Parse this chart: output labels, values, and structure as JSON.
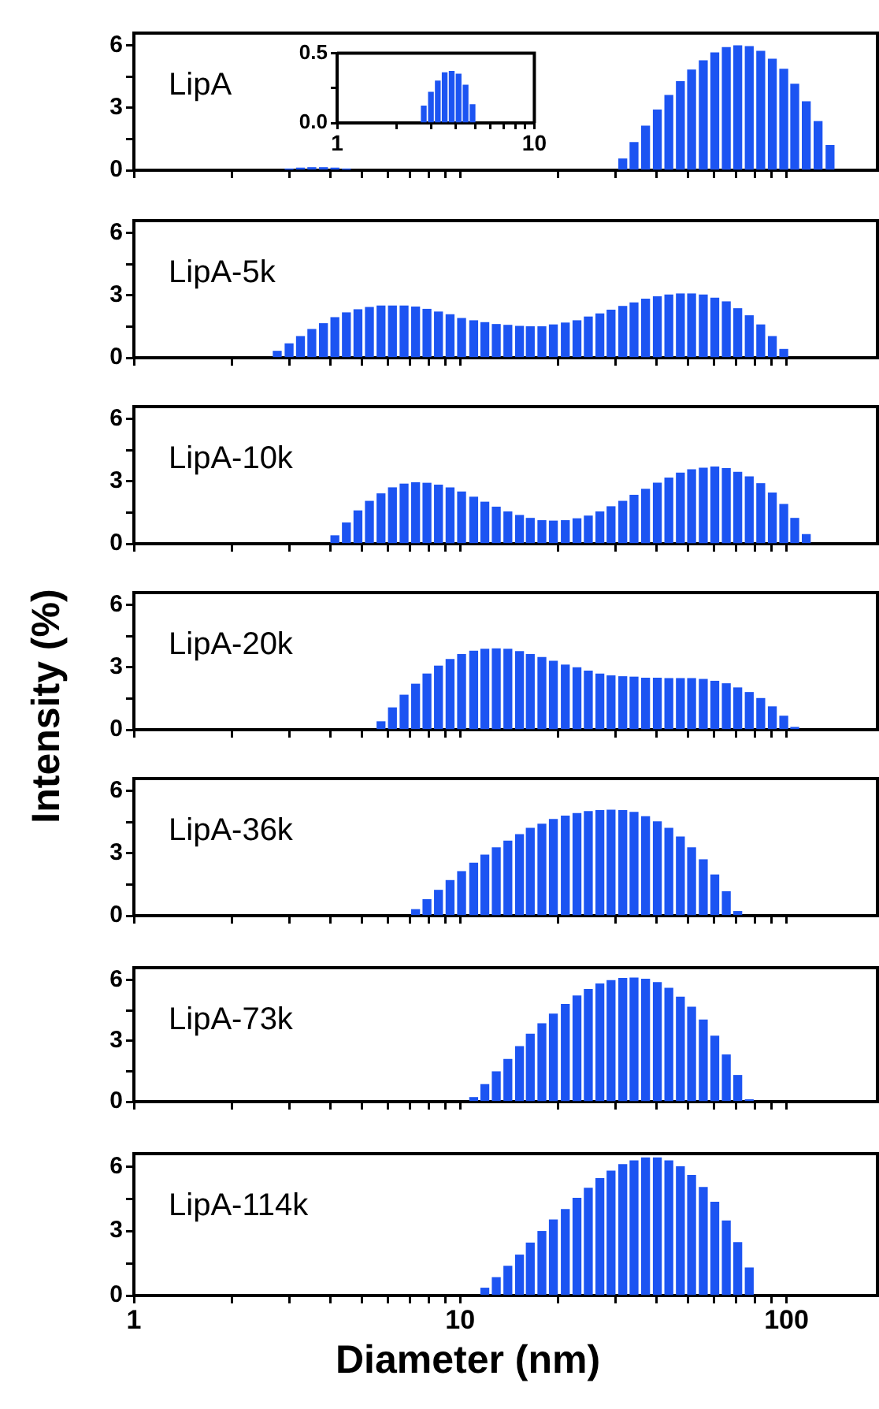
{
  "chart_data": [
    {
      "type": "bar",
      "title": "LipA",
      "log": "x",
      "tick_labels": "y",
      "color": "#1c54f2",
      "xlim": [
        1,
        190
      ],
      "xticks": [
        1,
        {
          "value": 2,
          "label": null
        },
        {
          "value": 3,
          "label": null
        },
        {
          "value": 4,
          "label": null
        },
        {
          "value": 5,
          "label": null
        },
        {
          "value": 6,
          "label": null
        },
        {
          "value": 7,
          "label": null
        },
        {
          "value": 8,
          "label": null
        },
        {
          "value": 9,
          "label": null
        },
        10,
        {
          "value": 20,
          "label": null
        },
        {
          "value": 30,
          "label": null
        },
        {
          "value": 40,
          "label": null
        },
        {
          "value": 50,
          "label": null
        },
        {
          "value": 60,
          "label": null
        },
        {
          "value": 70,
          "label": null
        },
        {
          "value": 80,
          "label": null
        },
        {
          "value": 90,
          "label": null
        },
        100
      ],
      "ylim": [
        0,
        6.6
      ],
      "yticks": [
        0,
        {
          "value": 1.5,
          "label": null
        },
        3,
        {
          "value": 4.5,
          "label": null
        },
        6
      ],
      "x": [
        2.99,
        3.24,
        3.51,
        3.81,
        4.13,
        4.48,
        31.5,
        34.1,
        37,
        40.2,
        43.6,
        47.3,
        51.2,
        55.6,
        60.3,
        65.4,
        70.9,
        76.9,
        83.4,
        90.5,
        98.1,
        106,
        115,
        125,
        136
      ],
      "values": [
        0.05,
        0.1,
        0.12,
        0.12,
        0.1,
        0.05,
        0.54,
        1.33,
        2.12,
        2.9,
        3.6,
        4.26,
        4.82,
        5.27,
        5.65,
        5.9,
        5.99,
        5.95,
        5.72,
        5.34,
        4.86,
        4.14,
        3.29,
        2.34,
        1.19
      ]
    },
    {
      "type": "bar",
      "log": "x",
      "color": "#1c54f2",
      "xlim": [
        1,
        10
      ],
      "xticks": [
        1,
        {
          "value": 2,
          "label": null
        },
        {
          "value": 3,
          "label": null
        },
        {
          "value": 4,
          "label": null
        },
        {
          "value": 5,
          "label": null
        },
        {
          "value": 6,
          "label": null
        },
        {
          "value": 7,
          "label": null
        },
        {
          "value": 8,
          "label": null
        },
        {
          "value": 9,
          "label": null
        },
        10
      ],
      "ylim": [
        0,
        0.5
      ],
      "yticks": [
        {
          "value": 0,
          "label": "0.0"
        },
        {
          "value": 0.25,
          "label": null
        },
        0.5
      ],
      "x": [
        2.75,
        2.99,
        3.24,
        3.51,
        3.81,
        4.13,
        4.48,
        4.86
      ],
      "values": [
        0.12,
        0.22,
        0.3,
        0.36,
        0.37,
        0.35,
        0.27,
        0.13
      ]
    },
    {
      "type": "bar",
      "title": "LipA-5k",
      "log": "x",
      "tick_labels": "y",
      "color": "#1c54f2",
      "xlim": [
        1,
        190
      ],
      "xticks": [
        1,
        {
          "value": 2,
          "label": null
        },
        {
          "value": 3,
          "label": null
        },
        {
          "value": 4,
          "label": null
        },
        {
          "value": 5,
          "label": null
        },
        {
          "value": 6,
          "label": null
        },
        {
          "value": 7,
          "label": null
        },
        {
          "value": 8,
          "label": null
        },
        {
          "value": 9,
          "label": null
        },
        10,
        {
          "value": 20,
          "label": null
        },
        {
          "value": 30,
          "label": null
        },
        {
          "value": 40,
          "label": null
        },
        {
          "value": 50,
          "label": null
        },
        {
          "value": 60,
          "label": null
        },
        {
          "value": 70,
          "label": null
        },
        {
          "value": 80,
          "label": null
        },
        {
          "value": 90,
          "label": null
        },
        100
      ],
      "ylim": [
        0,
        6.6
      ],
      "yticks": [
        0,
        {
          "value": 1.5,
          "label": null
        },
        3,
        {
          "value": 4.5,
          "label": null
        },
        6
      ],
      "x": [
        2.75,
        2.99,
        3.24,
        3.51,
        3.81,
        4.13,
        4.48,
        4.86,
        5.27,
        5.72,
        6.2,
        6.73,
        7.3,
        7.91,
        8.58,
        9.31,
        10.1,
        11,
        11.9,
        12.9,
        14,
        15.2,
        16.4,
        17.8,
        19.3,
        21,
        22.8,
        24.7,
        26.8,
        29,
        31.5,
        34.1,
        37,
        40.2,
        43.6,
        47.3,
        51.2,
        55.6,
        60.3,
        65.4,
        70.9,
        76.9,
        83.4,
        90.5,
        98.1
      ],
      "values": [
        0.31,
        0.67,
        1.02,
        1.36,
        1.64,
        1.93,
        2.16,
        2.31,
        2.42,
        2.49,
        2.49,
        2.49,
        2.44,
        2.33,
        2.2,
        2.07,
        1.89,
        1.78,
        1.69,
        1.6,
        1.56,
        1.51,
        1.49,
        1.49,
        1.58,
        1.67,
        1.78,
        1.96,
        2.11,
        2.29,
        2.47,
        2.64,
        2.82,
        2.93,
        3.02,
        3.07,
        3.07,
        3.02,
        2.87,
        2.69,
        2.36,
        2.02,
        1.58,
        1.02,
        0.4
      ]
    },
    {
      "type": "bar",
      "title": "LipA-10k",
      "log": "x",
      "tick_labels": "y",
      "color": "#1c54f2",
      "xlim": [
        1,
        190
      ],
      "xticks": [
        1,
        {
          "value": 2,
          "label": null
        },
        {
          "value": 3,
          "label": null
        },
        {
          "value": 4,
          "label": null
        },
        {
          "value": 5,
          "label": null
        },
        {
          "value": 6,
          "label": null
        },
        {
          "value": 7,
          "label": null
        },
        {
          "value": 8,
          "label": null
        },
        {
          "value": 9,
          "label": null
        },
        10,
        {
          "value": 20,
          "label": null
        },
        {
          "value": 30,
          "label": null
        },
        {
          "value": 40,
          "label": null
        },
        {
          "value": 50,
          "label": null
        },
        {
          "value": 60,
          "label": null
        },
        {
          "value": 70,
          "label": null
        },
        {
          "value": 80,
          "label": null
        },
        {
          "value": 90,
          "label": null
        },
        100
      ],
      "ylim": [
        0,
        6.6
      ],
      "yticks": [
        0,
        {
          "value": 1.5,
          "label": null
        },
        3,
        {
          "value": 4.5,
          "label": null
        },
        6
      ],
      "x": [
        4.13,
        4.48,
        4.86,
        5.27,
        5.72,
        6.2,
        6.73,
        7.3,
        7.91,
        8.58,
        9.31,
        10.1,
        11,
        11.9,
        12.9,
        14,
        15.2,
        16.4,
        17.8,
        19.3,
        21,
        22.8,
        24.7,
        26.8,
        29,
        31.5,
        34.1,
        37,
        40.2,
        43.6,
        47.3,
        51.2,
        55.6,
        60.3,
        65.4,
        70.9,
        76.9,
        83.4,
        90.5,
        98.1,
        106,
        115
      ],
      "values": [
        0.38,
        1.0,
        1.58,
        2.04,
        2.4,
        2.69,
        2.87,
        2.93,
        2.91,
        2.82,
        2.69,
        2.49,
        2.24,
        2.0,
        1.76,
        1.53,
        1.36,
        1.22,
        1.11,
        1.09,
        1.11,
        1.2,
        1.33,
        1.53,
        1.78,
        2.04,
        2.33,
        2.62,
        2.91,
        3.16,
        3.4,
        3.56,
        3.64,
        3.69,
        3.62,
        3.44,
        3.22,
        2.89,
        2.44,
        1.89,
        1.22,
        0.44
      ]
    },
    {
      "type": "bar",
      "title": "LipA-20k",
      "ylabel": "Intensity (%)",
      "log": "x",
      "tick_labels": "y",
      "color": "#1c54f2",
      "xlim": [
        1,
        190
      ],
      "xticks": [
        1,
        {
          "value": 2,
          "label": null
        },
        {
          "value": 3,
          "label": null
        },
        {
          "value": 4,
          "label": null
        },
        {
          "value": 5,
          "label": null
        },
        {
          "value": 6,
          "label": null
        },
        {
          "value": 7,
          "label": null
        },
        {
          "value": 8,
          "label": null
        },
        {
          "value": 9,
          "label": null
        },
        10,
        {
          "value": 20,
          "label": null
        },
        {
          "value": 30,
          "label": null
        },
        {
          "value": 40,
          "label": null
        },
        {
          "value": 50,
          "label": null
        },
        {
          "value": 60,
          "label": null
        },
        {
          "value": 70,
          "label": null
        },
        {
          "value": 80,
          "label": null
        },
        {
          "value": 90,
          "label": null
        },
        100
      ],
      "ylim": [
        0,
        6.6
      ],
      "yticks": [
        0,
        {
          "value": 1.5,
          "label": null
        },
        3,
        {
          "value": 4.5,
          "label": null
        },
        6
      ],
      "x": [
        5.72,
        6.2,
        6.73,
        7.3,
        7.91,
        8.58,
        9.31,
        10.1,
        11,
        11.9,
        12.9,
        14,
        15.2,
        16.4,
        17.8,
        19.3,
        21,
        22.8,
        24.7,
        26.8,
        29,
        31.5,
        34.1,
        37,
        40.2,
        43.6,
        47.3,
        51.2,
        55.6,
        60.3,
        65.4,
        70.9,
        76.9,
        83.4,
        90.5,
        98.1,
        106
      ],
      "values": [
        0.38,
        1.05,
        1.66,
        2.19,
        2.68,
        3.06,
        3.38,
        3.62,
        3.78,
        3.87,
        3.89,
        3.87,
        3.76,
        3.62,
        3.47,
        3.29,
        3.11,
        2.98,
        2.82,
        2.68,
        2.59,
        2.55,
        2.53,
        2.48,
        2.48,
        2.46,
        2.46,
        2.46,
        2.42,
        2.33,
        2.21,
        2.01,
        1.79,
        1.5,
        1.1,
        0.65,
        0.11
      ]
    },
    {
      "type": "bar",
      "title": "LipA-36k",
      "log": "x",
      "tick_labels": "y",
      "color": "#1c54f2",
      "xlim": [
        1,
        190
      ],
      "xticks": [
        1,
        {
          "value": 2,
          "label": null
        },
        {
          "value": 3,
          "label": null
        },
        {
          "value": 4,
          "label": null
        },
        {
          "value": 5,
          "label": null
        },
        {
          "value": 6,
          "label": null
        },
        {
          "value": 7,
          "label": null
        },
        {
          "value": 8,
          "label": null
        },
        {
          "value": 9,
          "label": null
        },
        10,
        {
          "value": 20,
          "label": null
        },
        {
          "value": 30,
          "label": null
        },
        {
          "value": 40,
          "label": null
        },
        {
          "value": 50,
          "label": null
        },
        {
          "value": 60,
          "label": null
        },
        {
          "value": 70,
          "label": null
        },
        {
          "value": 80,
          "label": null
        },
        {
          "value": 90,
          "label": null
        },
        100
      ],
      "ylim": [
        0,
        6.6
      ],
      "yticks": [
        0,
        {
          "value": 1.5,
          "label": null
        },
        3,
        {
          "value": 4.5,
          "label": null
        },
        6
      ],
      "x": [
        7.3,
        7.91,
        8.58,
        9.31,
        10.1,
        11,
        11.9,
        12.9,
        14,
        15.2,
        16.4,
        17.8,
        19.3,
        21,
        22.8,
        24.7,
        26.8,
        29,
        31.5,
        34.1,
        37,
        40.2,
        43.6,
        47.3,
        51.2,
        55.6,
        60.3,
        65.4,
        70.9
      ],
      "values": [
        0.29,
        0.77,
        1.22,
        1.69,
        2.12,
        2.53,
        2.91,
        3.27,
        3.59,
        3.9,
        4.2,
        4.4,
        4.63,
        4.79,
        4.92,
        5.01,
        5.06,
        5.08,
        5.06,
        4.97,
        4.76,
        4.52,
        4.2,
        3.79,
        3.27,
        2.69,
        1.96,
        1.15,
        0.2
      ]
    },
    {
      "type": "bar",
      "title": "LipA-73k",
      "log": "x",
      "tick_labels": "y",
      "color": "#1c54f2",
      "xlim": [
        1,
        190
      ],
      "xticks": [
        1,
        {
          "value": 2,
          "label": null
        },
        {
          "value": 3,
          "label": null
        },
        {
          "value": 4,
          "label": null
        },
        {
          "value": 5,
          "label": null
        },
        {
          "value": 6,
          "label": null
        },
        {
          "value": 7,
          "label": null
        },
        {
          "value": 8,
          "label": null
        },
        {
          "value": 9,
          "label": null
        },
        10,
        {
          "value": 20,
          "label": null
        },
        {
          "value": 30,
          "label": null
        },
        {
          "value": 40,
          "label": null
        },
        {
          "value": 50,
          "label": null
        },
        {
          "value": 60,
          "label": null
        },
        {
          "value": 70,
          "label": null
        },
        {
          "value": 80,
          "label": null
        },
        {
          "value": 90,
          "label": null
        },
        100
      ],
      "ylim": [
        0,
        6.6
      ],
      "yticks": [
        0,
        {
          "value": 1.5,
          "label": null
        },
        3,
        {
          "value": 4.5,
          "label": null
        },
        6
      ],
      "x": [
        11,
        11.9,
        12.9,
        14,
        15.2,
        16.4,
        17.8,
        19.3,
        21,
        22.8,
        24.7,
        26.8,
        29,
        31.5,
        34.1,
        37,
        40.2,
        43.6,
        47.3,
        51.2,
        55.6,
        60.3,
        65.4,
        70.9,
        76.9
      ],
      "values": [
        0.2,
        0.84,
        1.47,
        2.08,
        2.71,
        3.32,
        3.84,
        4.31,
        4.79,
        5.21,
        5.53,
        5.8,
        5.96,
        6.07,
        6.09,
        6.03,
        5.87,
        5.58,
        5.15,
        4.65,
        4.02,
        3.23,
        2.3,
        1.29,
        0.09
      ]
    },
    {
      "type": "bar",
      "title": "LipA-114k",
      "xlabel": "Diameter (nm)",
      "log": "x",
      "color": "#1c54f2",
      "xlim": [
        1,
        190
      ],
      "xticks": [
        1,
        {
          "value": 2,
          "label": null
        },
        {
          "value": 3,
          "label": null
        },
        {
          "value": 4,
          "label": null
        },
        {
          "value": 5,
          "label": null
        },
        {
          "value": 6,
          "label": null
        },
        {
          "value": 7,
          "label": null
        },
        {
          "value": 8,
          "label": null
        },
        {
          "value": 9,
          "label": null
        },
        10,
        {
          "value": 20,
          "label": null
        },
        {
          "value": 30,
          "label": null
        },
        {
          "value": 40,
          "label": null
        },
        {
          "value": 50,
          "label": null
        },
        {
          "value": 60,
          "label": null
        },
        {
          "value": 70,
          "label": null
        },
        {
          "value": 80,
          "label": null
        },
        {
          "value": 90,
          "label": null
        },
        100
      ],
      "ylim": [
        0,
        6.6
      ],
      "yticks": [
        0,
        {
          "value": 1.5,
          "label": null
        },
        3,
        {
          "value": 4.5,
          "label": null
        },
        6
      ],
      "x": [
        11.9,
        12.9,
        14,
        15.2,
        16.4,
        17.8,
        19.3,
        21,
        22.8,
        24.7,
        26.8,
        29,
        31.5,
        34.1,
        37,
        40.2,
        43.6,
        47.3,
        51.2,
        55.6,
        60.3,
        65.4,
        70.9,
        76.9
      ],
      "values": [
        0.34,
        0.83,
        1.36,
        1.88,
        2.44,
        2.98,
        3.51,
        4.0,
        4.52,
        4.99,
        5.44,
        5.79,
        6.09,
        6.26,
        6.4,
        6.4,
        6.26,
        5.99,
        5.59,
        5.03,
        4.34,
        3.47,
        2.46,
        1.28
      ]
    }
  ]
}
